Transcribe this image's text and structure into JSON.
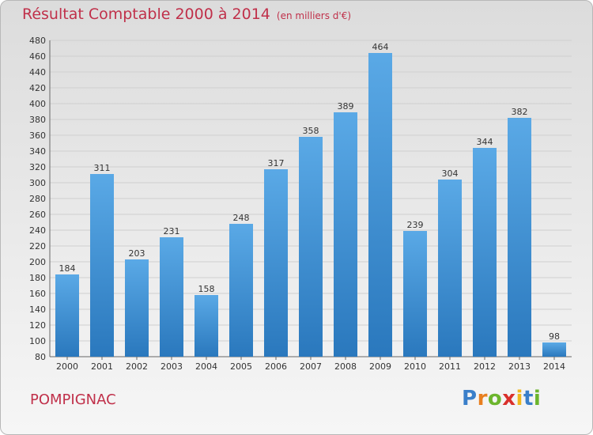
{
  "title": "Résultat Comptable 2000 à 2014",
  "subtitle": "(en milliers d'€)",
  "town": "POMPIGNAC",
  "logo": {
    "text": "Proxiti"
  },
  "colors": {
    "accent": "#c0304a",
    "bar_top": "#5aa9e6",
    "bar_bottom": "#2a78bd"
  },
  "chart_data": {
    "type": "bar",
    "title": "Résultat Comptable 2000 à 2014",
    "subtitle": "(en milliers d'€)",
    "categories": [
      "2000",
      "2001",
      "2002",
      "2003",
      "2004",
      "2005",
      "2006",
      "2007",
      "2008",
      "2009",
      "2010",
      "2011",
      "2012",
      "2013",
      "2014"
    ],
    "values": [
      184,
      311,
      203,
      231,
      158,
      248,
      317,
      358,
      389,
      464,
      239,
      304,
      344,
      382,
      98
    ],
    "ylim": [
      80,
      480
    ],
    "yticks": [
      80,
      100,
      120,
      140,
      160,
      180,
      200,
      220,
      240,
      260,
      280,
      300,
      320,
      340,
      360,
      380,
      400,
      420,
      440,
      460,
      480
    ],
    "grid": true,
    "data_labels": true
  }
}
